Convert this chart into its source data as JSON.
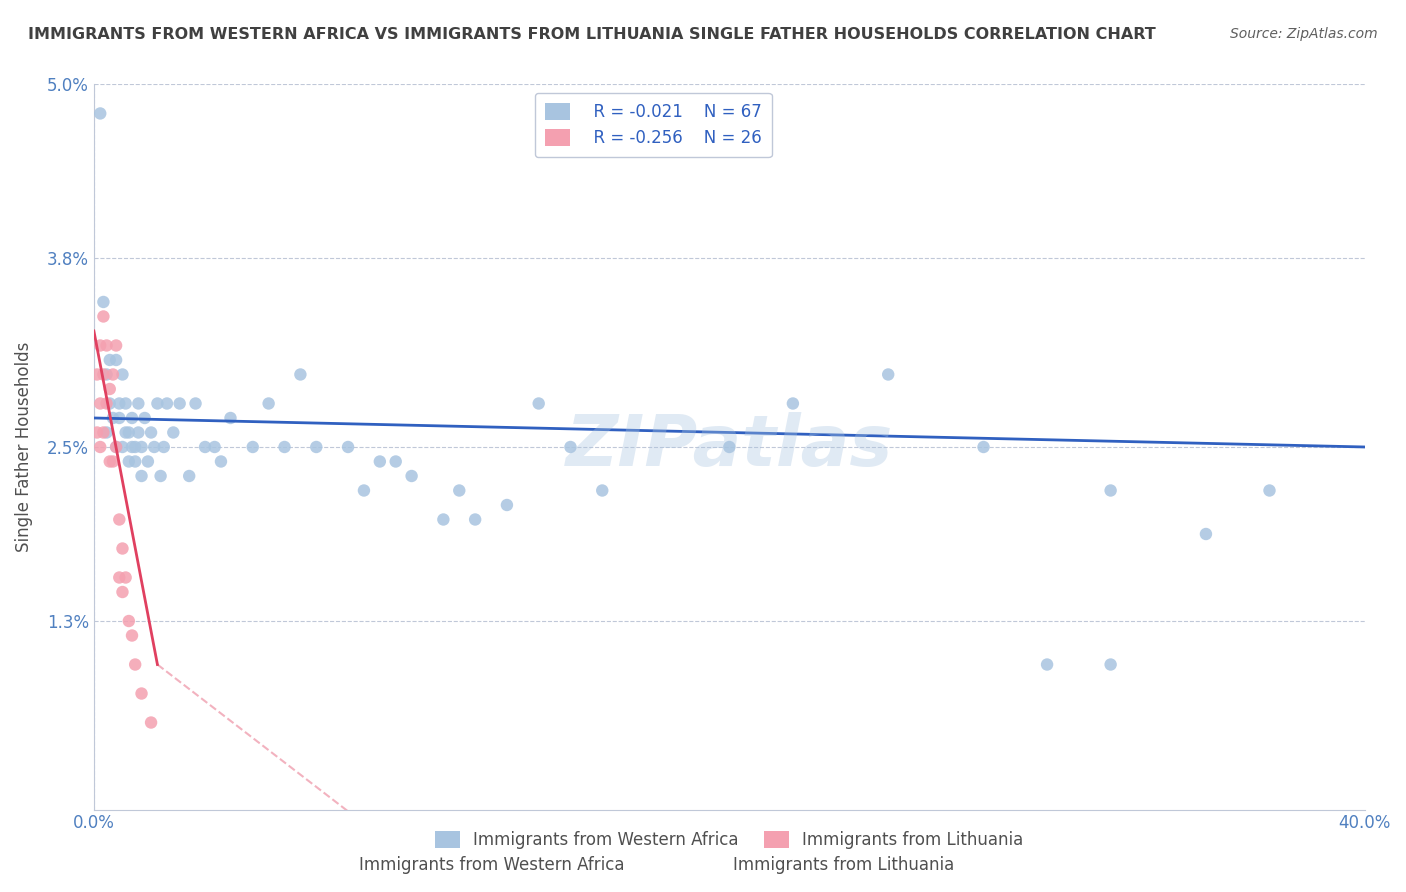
{
  "title": "IMMIGRANTS FROM WESTERN AFRICA VS IMMIGRANTS FROM LITHUANIA SINGLE FATHER HOUSEHOLDS CORRELATION CHART",
  "source": "Source: ZipAtlas.com",
  "xlabel_bottom": "",
  "ylabel": "Single Father Households",
  "x_min": 0.0,
  "x_max": 0.4,
  "y_min": 0.0,
  "y_max": 0.05,
  "x_ticks": [
    0.0,
    0.4
  ],
  "x_tick_labels": [
    "0.0%",
    "40.0%"
  ],
  "y_ticks": [
    0.013,
    0.025,
    0.038,
    0.05
  ],
  "y_tick_labels": [
    "1.3%",
    "2.5%",
    "3.8%",
    "5.0%"
  ],
  "legend_labels": [
    "Immigrants from Western Africa",
    "Immigrants from Lithuania"
  ],
  "legend_r": [
    "R = -0.021",
    "R = -0.256"
  ],
  "legend_n": [
    "N = 67",
    "N = 26"
  ],
  "blue_color": "#a8c4e0",
  "pink_color": "#f4a0b0",
  "blue_line_color": "#3060c0",
  "pink_line_color": "#e04060",
  "title_color": "#404040",
  "source_color": "#606060",
  "watermark": "ZIPatlas",
  "blue_scatter_x": [
    0.002,
    0.003,
    0.004,
    0.004,
    0.005,
    0.005,
    0.006,
    0.007,
    0.007,
    0.008,
    0.008,
    0.009,
    0.009,
    0.01,
    0.01,
    0.011,
    0.011,
    0.012,
    0.012,
    0.013,
    0.013,
    0.014,
    0.014,
    0.015,
    0.015,
    0.016,
    0.017,
    0.018,
    0.019,
    0.02,
    0.021,
    0.022,
    0.023,
    0.025,
    0.027,
    0.03,
    0.032,
    0.035,
    0.038,
    0.04,
    0.043,
    0.05,
    0.055,
    0.06,
    0.065,
    0.07,
    0.08,
    0.085,
    0.09,
    0.095,
    0.1,
    0.11,
    0.115,
    0.12,
    0.13,
    0.14,
    0.15,
    0.16,
    0.2,
    0.22,
    0.25,
    0.28,
    0.3,
    0.32,
    0.35,
    0.37,
    0.32
  ],
  "blue_scatter_y": [
    0.048,
    0.035,
    0.03,
    0.026,
    0.031,
    0.028,
    0.027,
    0.025,
    0.031,
    0.028,
    0.027,
    0.025,
    0.03,
    0.026,
    0.028,
    0.024,
    0.026,
    0.027,
    0.025,
    0.024,
    0.025,
    0.026,
    0.028,
    0.025,
    0.023,
    0.027,
    0.024,
    0.026,
    0.025,
    0.028,
    0.023,
    0.025,
    0.028,
    0.026,
    0.028,
    0.023,
    0.028,
    0.025,
    0.025,
    0.024,
    0.027,
    0.025,
    0.028,
    0.025,
    0.03,
    0.025,
    0.025,
    0.022,
    0.024,
    0.024,
    0.023,
    0.02,
    0.022,
    0.02,
    0.021,
    0.028,
    0.025,
    0.022,
    0.025,
    0.028,
    0.03,
    0.025,
    0.01,
    0.01,
    0.019,
    0.022,
    0.022
  ],
  "pink_scatter_x": [
    0.001,
    0.001,
    0.002,
    0.002,
    0.002,
    0.003,
    0.003,
    0.003,
    0.004,
    0.004,
    0.005,
    0.005,
    0.006,
    0.006,
    0.007,
    0.007,
    0.008,
    0.008,
    0.009,
    0.009,
    0.01,
    0.011,
    0.012,
    0.013,
    0.015,
    0.018
  ],
  "pink_scatter_y": [
    0.03,
    0.026,
    0.032,
    0.028,
    0.025,
    0.034,
    0.03,
    0.026,
    0.032,
    0.028,
    0.029,
    0.024,
    0.03,
    0.024,
    0.032,
    0.025,
    0.02,
    0.016,
    0.018,
    0.015,
    0.016,
    0.013,
    0.012,
    0.01,
    0.008,
    0.006
  ],
  "blue_trend_x": [
    0.0,
    0.4
  ],
  "blue_trend_y": [
    0.027,
    0.025
  ],
  "pink_trend_x": [
    0.0,
    0.02
  ],
  "pink_trend_y": [
    0.033,
    0.01
  ]
}
